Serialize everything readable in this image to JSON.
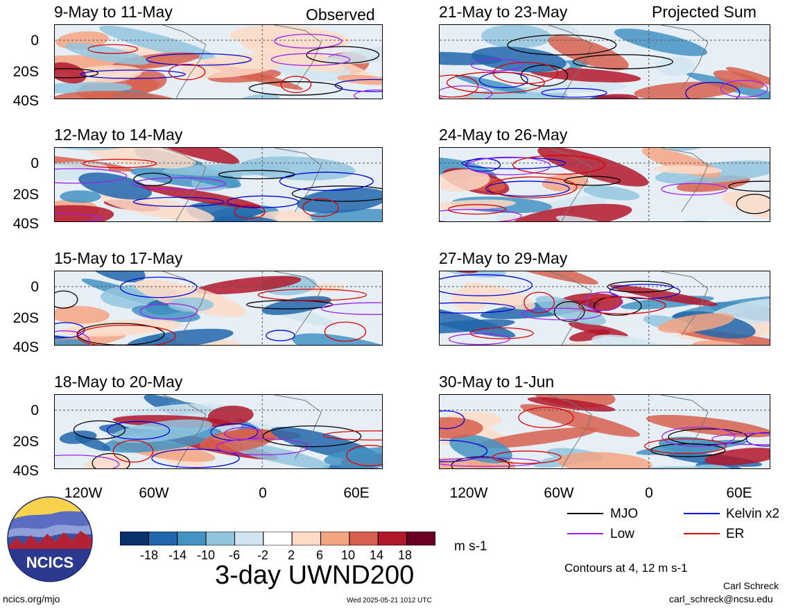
{
  "header": {
    "left_tag": "Observed",
    "right_tag": "Projected Sum"
  },
  "chart_data": {
    "type": "heatmap",
    "title": "3-day UWND200",
    "units": "m s-1",
    "latitude_ticks": [
      "0",
      "20S",
      "40S"
    ],
    "longitude_ticks": [
      "120W",
      "60W",
      "0",
      "60E"
    ],
    "panels": [
      {
        "title": "9-May to 11-May",
        "column": "Observed"
      },
      {
        "title": "12-May to 14-May",
        "column": "Observed"
      },
      {
        "title": "15-May to 17-May",
        "column": "Observed"
      },
      {
        "title": "18-May to 20-May",
        "column": "Observed"
      },
      {
        "title": "21-May to 23-May",
        "column": "Projected Sum"
      },
      {
        "title": "24-May to 26-May",
        "column": "Projected Sum"
      },
      {
        "title": "27-May to 29-May",
        "column": "Projected Sum"
      },
      {
        "title": "30-May to 1-Jun",
        "column": "Projected Sum"
      }
    ],
    "colorbar": {
      "ticks": [
        "-18",
        "-14",
        "-10",
        "-6",
        "-2",
        "2",
        "6",
        "10",
        "14",
        "18"
      ],
      "colors": [
        "#08306b",
        "#2166ac",
        "#4393c3",
        "#92c5de",
        "#d1e5f0",
        "#ffffff",
        "#fddbc7",
        "#f4a582",
        "#d6604d",
        "#b2182b",
        "#67001f"
      ]
    },
    "contour_legend": [
      {
        "name": "MJO",
        "color": "#000000"
      },
      {
        "name": "Kelvin x2",
        "color": "#0000dd"
      },
      {
        "name": "Low",
        "color": "#a020f0"
      },
      {
        "name": "ER",
        "color": "#dd0000"
      }
    ],
    "contour_note": "Contours at 4, 12 m s-1"
  },
  "footer": {
    "logo_text": "NCICS",
    "site": "ncics.org/mjo",
    "timestamp": "Wed 2025-05-21 1012 UTC",
    "author": "Carl Schreck",
    "email": "carl_schreck@ncsu.edu"
  }
}
